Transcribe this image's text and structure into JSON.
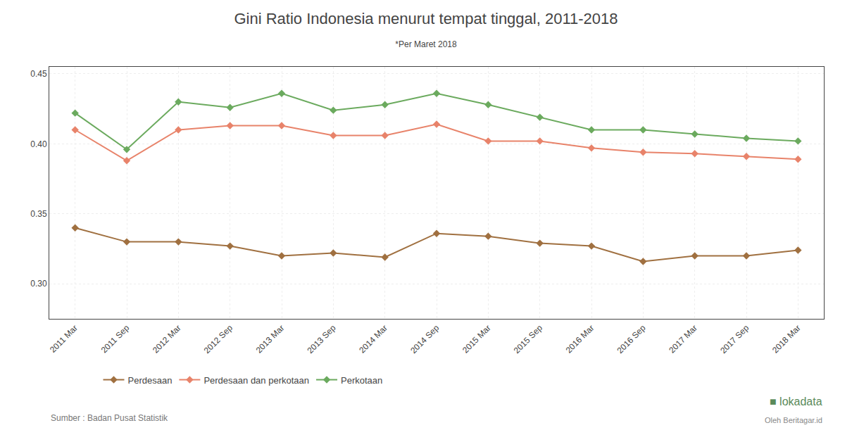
{
  "chart_data": {
    "type": "line",
    "title": "Gini Ratio Indonesia menurut tempat tinggal, 2011-2018",
    "subtitle": "*Per Maret 2018",
    "categories": [
      "2011 Mar",
      "2011 Sep",
      "2012 Mar",
      "2012 Sep",
      "2013 Mar",
      "2013 Sep",
      "2014 Mar",
      "2014 Sep",
      "2015 Mar",
      "2015 Sep",
      "2016 Mar",
      "2016 Sep",
      "2017 Mar",
      "2017 Sep",
      "2018 Mar"
    ],
    "series": [
      {
        "name": "Perdesaan",
        "color": "#A07040",
        "values": [
          0.34,
          0.33,
          0.33,
          0.327,
          0.32,
          0.322,
          0.319,
          0.336,
          0.334,
          0.329,
          0.327,
          0.316,
          0.32,
          0.32,
          0.324
        ]
      },
      {
        "name": "Perdesaan dan perkotaan",
        "color": "#E8836A",
        "values": [
          0.41,
          0.388,
          0.41,
          0.413,
          0.413,
          0.406,
          0.406,
          0.414,
          0.402,
          0.402,
          0.397,
          0.394,
          0.393,
          0.391,
          0.389
        ]
      },
      {
        "name": "Perkotaan",
        "color": "#6BAA5E",
        "values": [
          0.422,
          0.396,
          0.43,
          0.426,
          0.436,
          0.424,
          0.428,
          0.436,
          0.428,
          0.419,
          0.41,
          0.41,
          0.407,
          0.404,
          0.402
        ]
      }
    ],
    "ylim": [
      0.275,
      0.455
    ],
    "yticks": [
      {
        "value": 0.3,
        "label": "0.30"
      },
      0.35,
      {
        "value": 0.4,
        "label": "0.40"
      },
      0.45
    ],
    "grid": true,
    "legend": "bottom",
    "marker": "diamond",
    "line_style": "solid",
    "annotations": [
      "Sumber : Badan Pusat Statistik",
      "■ lokadata",
      "Oleh Beritagar.id"
    ]
  }
}
